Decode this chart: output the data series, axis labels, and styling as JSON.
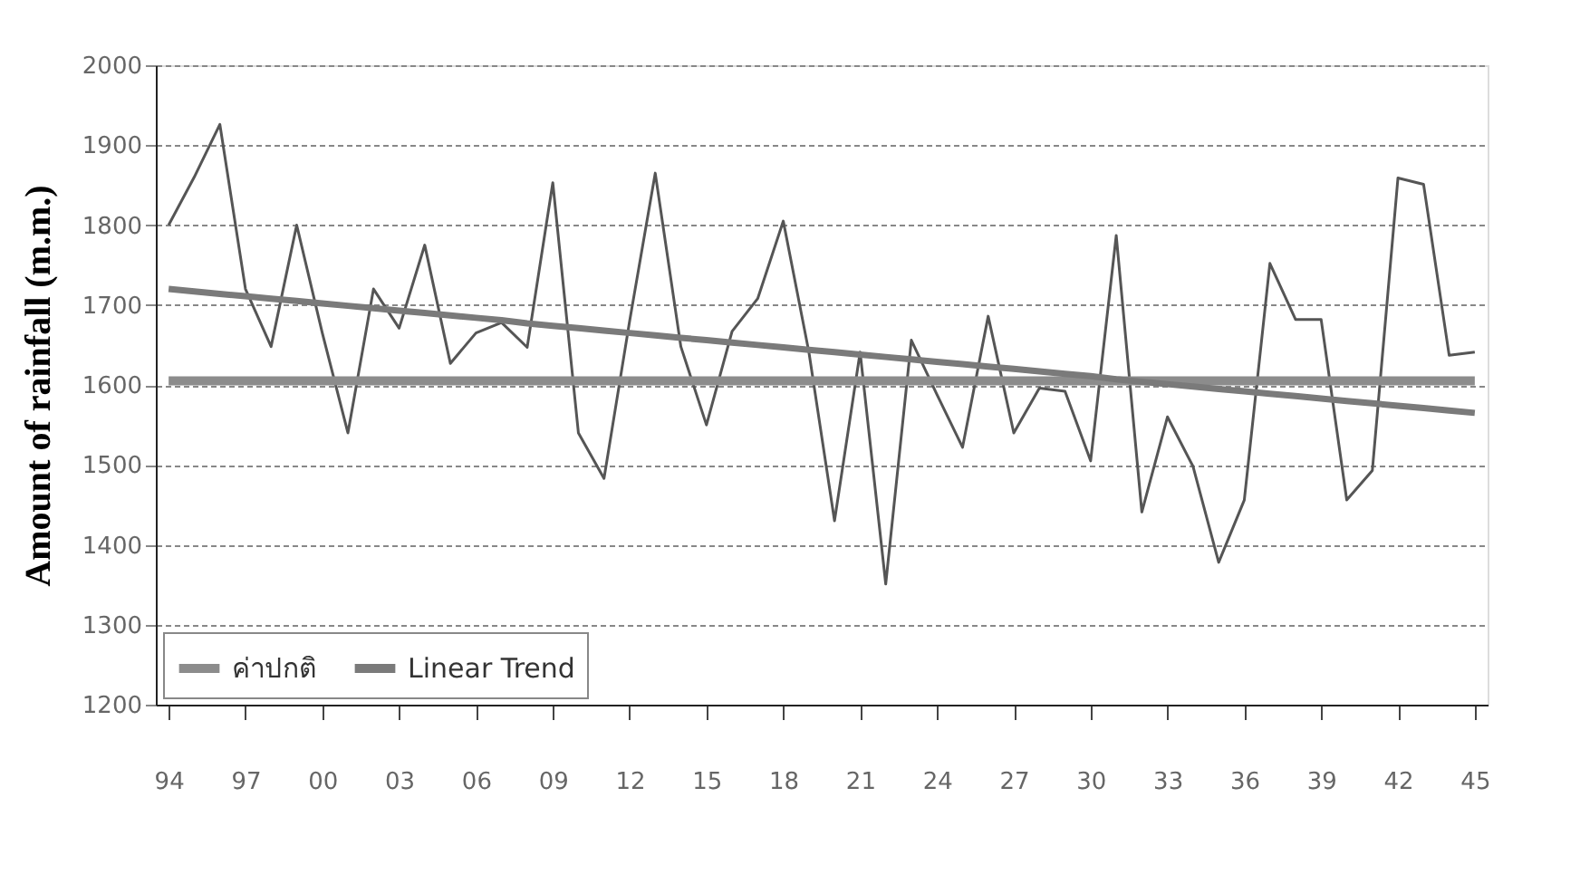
{
  "chart_data": {
    "type": "line",
    "ylabel": "Amount of rainfall (m.m.)",
    "categories": [
      "94",
      null,
      null,
      "97",
      null,
      null,
      "00",
      null,
      null,
      "03",
      null,
      null,
      "06",
      null,
      null,
      "09",
      null,
      null,
      "12",
      null,
      null,
      "15",
      null,
      null,
      "18",
      null,
      null,
      "21",
      null,
      null,
      "24",
      null,
      null,
      "27",
      null,
      null,
      "30",
      null,
      null,
      "33",
      null,
      null,
      "36",
      null,
      null,
      "39",
      null,
      null,
      "42",
      null,
      null,
      "45"
    ],
    "series": [
      {
        "color": "#555555",
        "values": [
          1800,
          1860,
          1926,
          1720,
          1648,
          1800,
          1665,
          1540,
          1720,
          1671,
          1775,
          1627,
          1665,
          1678,
          1647,
          1853,
          1540,
          1483,
          1680,
          1865,
          1648,
          1550,
          1667,
          1708,
          1805,
          1641,
          1430,
          1641,
          1351,
          1656,
          1588,
          1522,
          1686,
          1540,
          1596,
          1592,
          1505,
          1787,
          1441,
          1560,
          1498,
          1378,
          1456,
          1752,
          1682,
          1682,
          1456,
          1493,
          1859,
          1851,
          1637,
          1641
        ]
      },
      {
        "name": "ค่าปกติ",
        "color": "#8c8c8c",
        "values": [
          1605,
          1605,
          1605,
          1605,
          1605,
          1605,
          1605,
          1605,
          1605,
          1605,
          1605,
          1605,
          1605,
          1605,
          1605,
          1605,
          1605,
          1605,
          1605,
          1605,
          1605,
          1605,
          1605,
          1605,
          1605,
          1605,
          1605,
          1605,
          1605,
          1605,
          1605,
          1605,
          1605,
          1605,
          1605,
          1605,
          1605,
          1605,
          1605,
          1605,
          1605,
          1605,
          1605,
          1605,
          1605,
          1605,
          1605,
          1605,
          1605,
          1605,
          1605,
          1605
        ]
      },
      {
        "name": "Linear Trend",
        "color": "#7a7a7a",
        "values": [
          1720,
          1717,
          1714,
          1711,
          1708,
          1705,
          1702,
          1699,
          1696,
          1693,
          1690,
          1687,
          1684,
          1681,
          1677,
          1674,
          1671,
          1668,
          1665,
          1662,
          1659,
          1656,
          1653,
          1650,
          1647,
          1644,
          1641,
          1638,
          1635,
          1632,
          1629,
          1626,
          1623,
          1620,
          1617,
          1614,
          1611,
          1607,
          1604,
          1601,
          1598,
          1595,
          1592,
          1589,
          1586,
          1583,
          1580,
          1577,
          1574,
          1571,
          1568,
          1565
        ]
      }
    ],
    "ylim": [
      1200,
      2000
    ],
    "yticks": [
      1200,
      1300,
      1400,
      1500,
      1600,
      1700,
      1800,
      1900,
      2000
    ],
    "grid": "y",
    "legend": "bottom left",
    "line_style": "solid",
    "marker": "none"
  }
}
